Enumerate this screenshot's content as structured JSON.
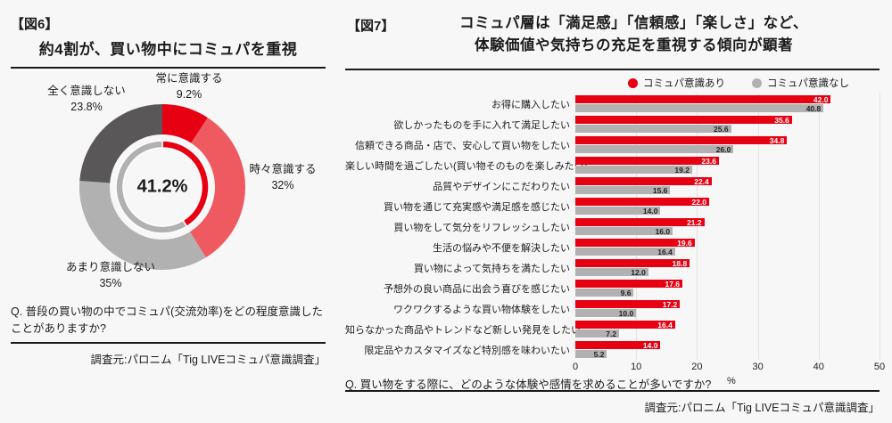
{
  "page": {
    "background": "#f8f7f7",
    "accent_red": "#e60012",
    "accent_gray": "#b1b1b1"
  },
  "fig6": {
    "fig_label": "【図6】",
    "title": "約4割が、買い物中にコミュパを重視",
    "question": "Q. 普段の買い物の中でコミュパ(交流効率)をどの程度意識したことがありますか?",
    "source": "調査元:パロニム「Tig LIVEコミュパ意識調査」"
  },
  "fig7": {
    "fig_label": "【図7】",
    "title_line1": "コミュパ層は「満足感」「信頼感」「楽しさ」など、",
    "title_line2": "体験価値や気持ちの充足を重視する傾向が顕著",
    "legend": [
      {
        "label": "コミュパ意識あり",
        "color": "#e60012"
      },
      {
        "label": "コミュパ意識なし",
        "color": "#b1b1b1"
      }
    ],
    "question": "Q. 買い物をする際に、どのような体験や感情を求めることが多いですか?",
    "source": "調査元:パロニム「Tig LIVEコミュパ意識調査」"
  },
  "chart_data": [
    {
      "type": "pie",
      "subtype": "donut",
      "title": "約4割が、買い物中にコミュパを重視",
      "center_label": "41.2%",
      "segments": [
        {
          "label": "常に意識する",
          "value": 9.2,
          "display": "9.2%",
          "color": "#e60012"
        },
        {
          "label": "時々意識する",
          "value": 32,
          "display": "32%",
          "color": "#ee5a5f"
        },
        {
          "label": "あまり意識しない",
          "value": 35,
          "display": "35%",
          "color": "#b1b1b1"
        },
        {
          "label": "全く意識しない",
          "value": 23.8,
          "display": "23.8%",
          "color": "#595757"
        }
      ],
      "inner_ring": [
        {
          "value": 41.2,
          "color": "#e60012"
        },
        {
          "value": 58.8,
          "color": "#b1b1b1"
        }
      ]
    },
    {
      "type": "bar",
      "orientation": "horizontal",
      "title": "コミュパ層は「満足感」「信頼感」「楽しさ」など、体験価値や気持ちの充足を重視する傾向が顕著",
      "categories": [
        "お得に購入したい",
        "欲しかったものを手に入れて満足したい",
        "信頼できる商品・店で、安心して買い物をしたい",
        "楽しい時間を過ごしたい(買い物そのものを楽しみたい)",
        "品質やデザインにこだわりたい",
        "買い物を通じて充実感や満足感を感じたい",
        "買い物をして気分をリフレッシュしたい",
        "生活の悩みや不便を解決したい",
        "買い物によって気持ちを満たしたい",
        "予想外の良い商品に出会う喜びを感じたい",
        "ワクワクするような買い物体験をしたい",
        "知らなかった商品やトレンドなど新しい発見をしたい",
        "限定品やカスタマイズなど特別感を味わいたい"
      ],
      "series": [
        {
          "name": "コミュパ意識あり",
          "color": "#e60012",
          "values": [
            42.0,
            35.6,
            34.8,
            23.6,
            22.4,
            22.0,
            21.2,
            19.6,
            18.8,
            17.6,
            17.2,
            16.4,
            14.0
          ]
        },
        {
          "name": "コミュパ意識なし",
          "color": "#b1b1b1",
          "values": [
            40.8,
            25.6,
            26.0,
            19.2,
            15.6,
            14.0,
            16.0,
            16.4,
            12.0,
            9.6,
            10.0,
            7.2,
            5.2
          ]
        }
      ],
      "xlim": [
        0,
        50
      ],
      "ticks": [
        0,
        10,
        20,
        30,
        40,
        50
      ],
      "xlabel": "%",
      "grid": true,
      "legend_position": "top-right"
    }
  ]
}
